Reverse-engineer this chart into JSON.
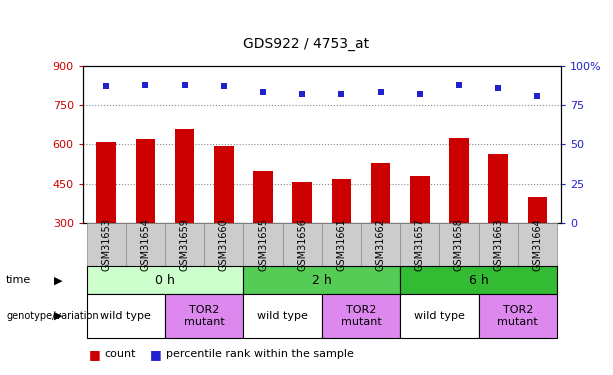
{
  "title": "GDS922 / 4753_at",
  "samples": [
    "GSM31653",
    "GSM31654",
    "GSM31659",
    "GSM31660",
    "GSM31655",
    "GSM31656",
    "GSM31661",
    "GSM31662",
    "GSM31657",
    "GSM31658",
    "GSM31663",
    "GSM31664"
  ],
  "counts": [
    610,
    620,
    660,
    595,
    500,
    455,
    470,
    530,
    480,
    625,
    565,
    400
  ],
  "percentiles": [
    87,
    88,
    88,
    87,
    83,
    82,
    82,
    83,
    82,
    88,
    86,
    81
  ],
  "ylim_left": [
    300,
    900
  ],
  "ylim_right": [
    0,
    100
  ],
  "yticks_left": [
    300,
    450,
    600,
    750,
    900
  ],
  "yticks_right": [
    0,
    25,
    50,
    75,
    100
  ],
  "bar_color": "#cc0000",
  "dot_color": "#2222cc",
  "grid_color": "#888888",
  "grid_dotted_vals": [
    450,
    600,
    750
  ],
  "time_groups": [
    {
      "label": "0 h",
      "start": 0,
      "end": 4,
      "color": "#ccffcc"
    },
    {
      "label": "2 h",
      "start": 4,
      "end": 8,
      "color": "#55cc55"
    },
    {
      "label": "6 h",
      "start": 8,
      "end": 12,
      "color": "#33bb33"
    }
  ],
  "genotype_groups": [
    {
      "label": "wild type",
      "start": 0,
      "end": 2,
      "color": "#ffffff"
    },
    {
      "label": "TOR2\nmutant",
      "start": 2,
      "end": 4,
      "color": "#dd88ee"
    },
    {
      "label": "wild type",
      "start": 4,
      "end": 6,
      "color": "#ffffff"
    },
    {
      "label": "TOR2\nmutant",
      "start": 6,
      "end": 8,
      "color": "#dd88ee"
    },
    {
      "label": "wild type",
      "start": 8,
      "end": 10,
      "color": "#ffffff"
    },
    {
      "label": "TOR2\nmutant",
      "start": 10,
      "end": 12,
      "color": "#dd88ee"
    }
  ],
  "legend_count_label": "count",
  "legend_percentile_label": "percentile rank within the sample",
  "time_label": "time",
  "genotype_label": "genotype/variation",
  "right_yaxis_color": "#2222cc",
  "left_yaxis_color": "#cc0000",
  "tick_label_size": 7,
  "title_fontsize": 10,
  "sample_bg_color": "#cccccc",
  "sample_border_color": "#888888"
}
